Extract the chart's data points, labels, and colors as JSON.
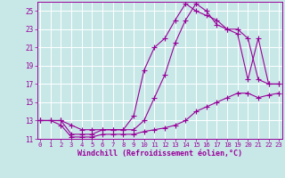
{
  "background_color": "#c8e8e8",
  "line_color": "#990099",
  "grid_color": "#ffffff",
  "xlabel": "Windchill (Refroidissement éolien,°C)",
  "xlabel_color": "#990099",
  "tick_color": "#990099",
  "xmin": 0,
  "xmax": 23,
  "ymin": 11,
  "ymax": 26,
  "yticks": [
    11,
    13,
    15,
    17,
    19,
    21,
    23,
    25
  ],
  "xticks": [
    0,
    1,
    2,
    3,
    4,
    5,
    6,
    7,
    8,
    9,
    10,
    11,
    12,
    13,
    14,
    15,
    16,
    17,
    18,
    19,
    20,
    21,
    22,
    23
  ],
  "line1_x": [
    0,
    1,
    2,
    3,
    4,
    5,
    6,
    7,
    8,
    9,
    10,
    11,
    12,
    13,
    14,
    15,
    16,
    17,
    18,
    19,
    20,
    21,
    22,
    23
  ],
  "line1_y": [
    13,
    13,
    12.5,
    11.2,
    11.2,
    11.2,
    11.5,
    11.5,
    11.5,
    11.5,
    11.8,
    12,
    12.2,
    12.5,
    13,
    14,
    14.5,
    15,
    15.5,
    16,
    16,
    15.5,
    15.8,
    16
  ],
  "line2_x": [
    0,
    2,
    3,
    4,
    5,
    6,
    7,
    8,
    9,
    10,
    11,
    12,
    13,
    14,
    15,
    16,
    17,
    18,
    19,
    20,
    21,
    22,
    23
  ],
  "line2_y": [
    13,
    13,
    12.5,
    12,
    12,
    12,
    12,
    12,
    12,
    13,
    15.5,
    18,
    21.5,
    24,
    25.8,
    25,
    23.5,
    23,
    22.5,
    17.5,
    22,
    17,
    17
  ],
  "line3_x": [
    0,
    1,
    2,
    3,
    4,
    5,
    6,
    7,
    8,
    9,
    10,
    11,
    12,
    13,
    14,
    15,
    16,
    17,
    18,
    19,
    20,
    21,
    22,
    23
  ],
  "line3_y": [
    13,
    13,
    13,
    11.5,
    11.5,
    11.5,
    12,
    12,
    12,
    13.5,
    18.5,
    21,
    22,
    24,
    25.8,
    25,
    24.5,
    24,
    23,
    23,
    22,
    17.5,
    17,
    17
  ]
}
